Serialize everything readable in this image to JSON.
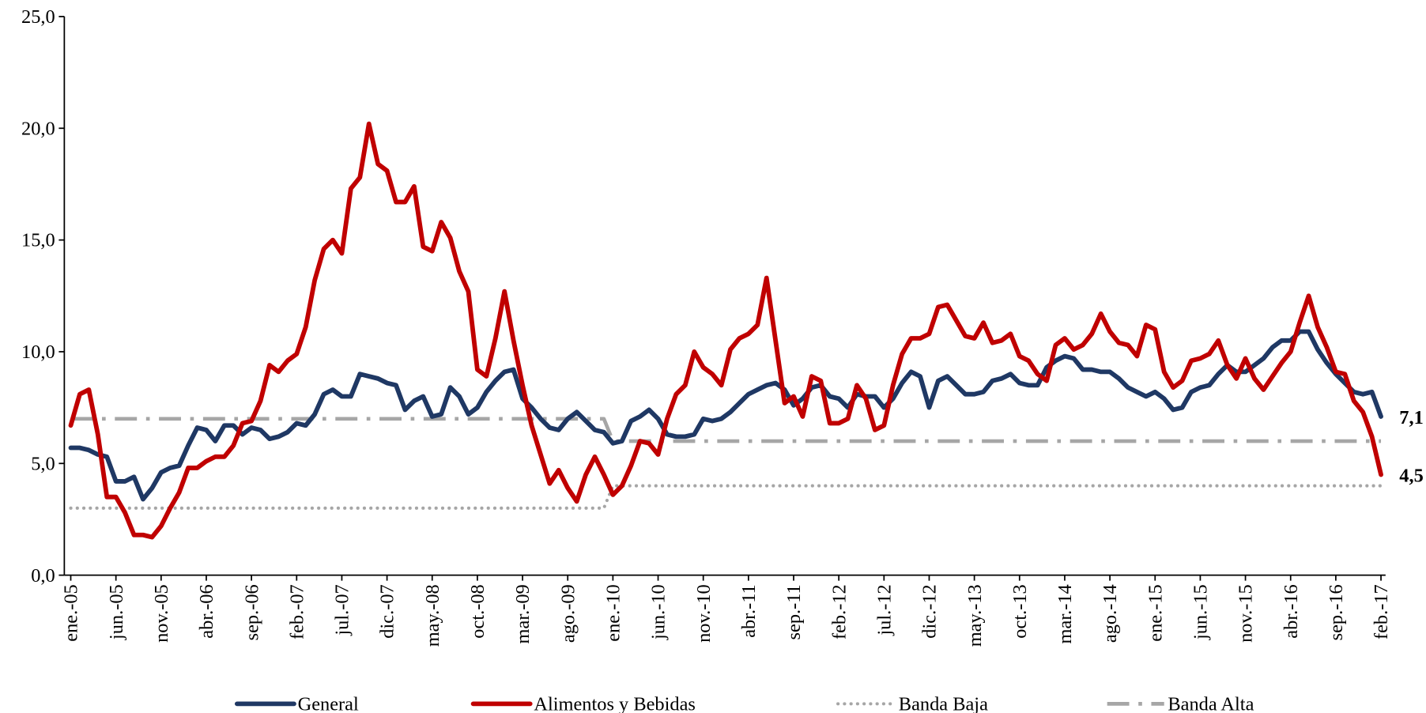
{
  "chart_data": {
    "type": "line",
    "categories": [
      "ene.-05",
      null,
      null,
      null,
      null,
      "jun.-05",
      null,
      null,
      null,
      null,
      "nov.-05",
      null,
      null,
      null,
      null,
      "abr.-06",
      null,
      null,
      null,
      null,
      "sep.-06",
      null,
      null,
      null,
      null,
      "feb.-07",
      null,
      null,
      null,
      null,
      "jul.-07",
      null,
      null,
      null,
      null,
      "dic.-07",
      null,
      null,
      null,
      null,
      "may.-08",
      null,
      null,
      null,
      null,
      "oct.-08",
      null,
      null,
      null,
      null,
      "mar.-09",
      null,
      null,
      null,
      null,
      "ago.-09",
      null,
      null,
      null,
      null,
      "ene.-10",
      null,
      null,
      null,
      null,
      "jun.-10",
      null,
      null,
      null,
      null,
      "nov.-10",
      null,
      null,
      null,
      null,
      "abr.-11",
      null,
      null,
      null,
      null,
      "sep.-11",
      null,
      null,
      null,
      null,
      "feb.-12",
      null,
      null,
      null,
      null,
      "jul.-12",
      null,
      null,
      null,
      null,
      "dic.-12",
      null,
      null,
      null,
      null,
      "may.-13",
      null,
      null,
      null,
      null,
      "oct.-13",
      null,
      null,
      null,
      null,
      "mar.-14",
      null,
      null,
      null,
      null,
      "ago.-14",
      null,
      null,
      null,
      null,
      "ene.-15",
      null,
      null,
      null,
      null,
      "jun.-15",
      null,
      null,
      null,
      null,
      "nov.-15",
      null,
      null,
      null,
      null,
      "abr.-16",
      null,
      null,
      null,
      null,
      "sep.-16",
      null,
      null,
      null,
      null,
      "feb.-17"
    ],
    "series": [
      {
        "name": "General",
        "color": "#1f3864",
        "width": 5,
        "dash": "solid",
        "values": [
          5.7,
          5.7,
          5.6,
          5.4,
          5.3,
          4.2,
          4.2,
          4.4,
          3.4,
          3.9,
          4.6,
          4.8,
          4.9,
          5.8,
          6.6,
          6.5,
          6.0,
          6.7,
          6.7,
          6.3,
          6.6,
          6.5,
          6.1,
          6.2,
          6.4,
          6.8,
          6.7,
          7.2,
          8.1,
          8.3,
          8.0,
          8.0,
          9.0,
          8.9,
          8.8,
          8.6,
          8.5,
          7.4,
          7.8,
          8.0,
          7.1,
          7.2,
          8.4,
          8.0,
          7.2,
          7.5,
          8.2,
          8.7,
          9.1,
          9.2,
          7.9,
          7.5,
          7.0,
          6.6,
          6.5,
          7.0,
          7.3,
          6.9,
          6.5,
          6.4,
          5.9,
          6.0,
          6.9,
          7.1,
          7.4,
          7.0,
          6.3,
          6.2,
          6.2,
          6.3,
          7.0,
          6.9,
          7.0,
          7.3,
          7.7,
          8.1,
          8.3,
          8.5,
          8.6,
          8.3,
          7.6,
          7.9,
          8.4,
          8.5,
          8.0,
          7.9,
          7.5,
          8.1,
          8.0,
          8.0,
          7.5,
          7.9,
          8.6,
          9.1,
          8.9,
          7.5,
          8.7,
          8.9,
          8.5,
          8.1,
          8.1,
          8.2,
          8.7,
          8.8,
          9.0,
          8.6,
          8.5,
          8.5,
          9.3,
          9.6,
          9.8,
          9.7,
          9.2,
          9.2,
          9.1,
          9.1,
          8.8,
          8.4,
          8.2,
          8.0,
          8.2,
          7.9,
          7.4,
          7.5,
          8.2,
          8.4,
          8.5,
          9.0,
          9.4,
          9.1,
          9.1,
          9.4,
          9.7,
          10.2,
          10.5,
          10.5,
          10.9,
          10.9,
          10.1,
          9.5,
          9.0,
          8.6,
          8.2,
          8.1,
          8.2,
          7.1
        ],
        "value_labels": [
          null,
          null,
          null,
          null,
          null,
          null,
          null,
          null,
          null,
          null,
          null,
          null,
          null,
          null,
          null,
          null,
          null,
          null,
          null,
          null,
          null,
          null,
          null,
          null,
          null,
          null,
          null,
          null,
          null,
          null,
          null,
          null,
          null,
          null,
          null,
          null,
          null,
          null,
          null,
          null,
          null,
          null,
          null,
          null,
          null,
          null,
          null,
          null,
          null,
          null,
          null,
          null,
          null,
          null,
          null,
          null,
          null,
          null,
          null,
          null,
          null,
          null,
          null,
          null,
          null,
          null,
          null,
          null,
          null,
          null,
          null,
          null,
          null,
          null,
          null,
          null,
          null,
          null,
          null,
          null,
          null,
          null,
          null,
          null,
          null,
          null,
          null,
          null,
          null,
          null,
          null,
          null,
          null,
          null,
          null,
          null,
          null,
          null,
          null,
          null,
          null,
          null,
          null,
          null,
          null,
          null,
          null,
          null,
          null,
          null,
          null,
          null,
          null,
          null,
          null,
          null,
          null,
          null,
          null,
          null,
          null,
          null,
          null,
          null,
          null,
          null,
          null,
          null,
          null,
          null,
          null,
          null,
          null,
          null,
          null,
          null,
          null,
          null,
          null,
          null,
          null,
          null,
          null,
          null,
          null,
          "7,1"
        ]
      },
      {
        "name": "Alimentos y Bebidas",
        "color": "#c00000",
        "width": 5,
        "dash": "solid",
        "values": [
          6.7,
          8.1,
          8.3,
          6.3,
          3.5,
          3.5,
          2.8,
          1.8,
          1.8,
          1.7,
          2.2,
          3.0,
          3.7,
          4.8,
          4.8,
          5.1,
          5.3,
          5.3,
          5.8,
          6.8,
          6.9,
          7.8,
          9.4,
          9.1,
          9.6,
          9.9,
          11.1,
          13.2,
          14.6,
          15.0,
          14.4,
          17.3,
          17.8,
          20.2,
          18.4,
          18.1,
          16.7,
          16.7,
          17.4,
          14.7,
          14.5,
          15.8,
          15.1,
          13.6,
          12.7,
          9.2,
          8.9,
          10.6,
          12.7,
          10.5,
          8.5,
          6.7,
          5.4,
          4.1,
          4.7,
          3.9,
          3.3,
          4.5,
          5.3,
          4.5,
          3.6,
          4.0,
          4.9,
          6.0,
          5.9,
          5.4,
          7.0,
          8.1,
          8.5,
          10.0,
          9.3,
          9.0,
          8.5,
          10.1,
          10.6,
          10.8,
          11.2,
          13.3,
          10.5,
          7.7,
          8.0,
          7.1,
          8.9,
          8.7,
          6.8,
          6.8,
          7.0,
          8.5,
          7.9,
          6.5,
          6.7,
          8.5,
          9.9,
          10.6,
          10.6,
          10.8,
          12.0,
          12.1,
          11.4,
          10.7,
          10.6,
          11.3,
          10.4,
          10.5,
          10.8,
          9.8,
          9.6,
          9.0,
          8.7,
          10.3,
          10.6,
          10.1,
          10.3,
          10.8,
          11.7,
          10.9,
          10.4,
          10.3,
          9.8,
          11.2,
          11.0,
          9.1,
          8.4,
          8.7,
          9.6,
          9.7,
          9.9,
          10.5,
          9.4,
          8.8,
          9.7,
          8.8,
          8.3,
          8.9,
          9.5,
          10.0,
          11.3,
          12.5,
          11.1,
          10.2,
          9.1,
          9.0,
          7.8,
          7.3,
          6.2,
          4.5
        ],
        "value_labels": [
          null,
          null,
          null,
          null,
          null,
          null,
          null,
          null,
          null,
          null,
          null,
          null,
          null,
          null,
          null,
          null,
          null,
          null,
          null,
          null,
          null,
          null,
          null,
          null,
          null,
          null,
          null,
          null,
          null,
          null,
          null,
          null,
          null,
          null,
          null,
          null,
          null,
          null,
          null,
          null,
          null,
          null,
          null,
          null,
          null,
          null,
          null,
          null,
          null,
          null,
          null,
          null,
          null,
          null,
          null,
          null,
          null,
          null,
          null,
          null,
          null,
          null,
          null,
          null,
          null,
          null,
          null,
          null,
          null,
          null,
          null,
          null,
          null,
          null,
          null,
          null,
          null,
          null,
          null,
          null,
          null,
          null,
          null,
          null,
          null,
          null,
          null,
          null,
          null,
          null,
          null,
          null,
          null,
          null,
          null,
          null,
          null,
          null,
          null,
          null,
          null,
          null,
          null,
          null,
          null,
          null,
          null,
          null,
          null,
          null,
          null,
          null,
          null,
          null,
          null,
          null,
          null,
          null,
          null,
          null,
          null,
          null,
          null,
          null,
          null,
          null,
          null,
          null,
          null,
          null,
          null,
          null,
          null,
          null,
          null,
          null,
          null,
          null,
          null,
          null,
          null,
          null,
          null,
          null,
          null,
          "4,5"
        ]
      },
      {
        "name": "Banda Baja",
        "color": "#a6a6a6",
        "width": 3.5,
        "dash": "dotted",
        "values": [
          3,
          3,
          3,
          3,
          3,
          3,
          3,
          3,
          3,
          3,
          3,
          3,
          3,
          3,
          3,
          3,
          3,
          3,
          3,
          3,
          3,
          3,
          3,
          3,
          3,
          3,
          3,
          3,
          3,
          3,
          3,
          3,
          3,
          3,
          3,
          3,
          3,
          3,
          3,
          3,
          3,
          3,
          3,
          3,
          3,
          3,
          3,
          3,
          3,
          3,
          3,
          3,
          3,
          3,
          3,
          3,
          3,
          3,
          3,
          3,
          4,
          4,
          4,
          4,
          4,
          4,
          4,
          4,
          4,
          4,
          4,
          4,
          4,
          4,
          4,
          4,
          4,
          4,
          4,
          4,
          4,
          4,
          4,
          4,
          4,
          4,
          4,
          4,
          4,
          4,
          4,
          4,
          4,
          4,
          4,
          4,
          4,
          4,
          4,
          4,
          4,
          4,
          4,
          4,
          4,
          4,
          4,
          4,
          4,
          4,
          4,
          4,
          4,
          4,
          4,
          4,
          4,
          4,
          4,
          4,
          4,
          4,
          4,
          4,
          4,
          4,
          4,
          4,
          4,
          4,
          4,
          4,
          4,
          4,
          4,
          4,
          4,
          4,
          4,
          4,
          4,
          4,
          4,
          4,
          4,
          4
        ]
      },
      {
        "name": "Banda Alta",
        "color": "#a6a6a6",
        "width": 4,
        "dash": "dashdot",
        "values": [
          7,
          7,
          7,
          7,
          7,
          7,
          7,
          7,
          7,
          7,
          7,
          7,
          7,
          7,
          7,
          7,
          7,
          7,
          7,
          7,
          7,
          7,
          7,
          7,
          7,
          7,
          7,
          7,
          7,
          7,
          7,
          7,
          7,
          7,
          7,
          7,
          7,
          7,
          7,
          7,
          7,
          7,
          7,
          7,
          7,
          7,
          7,
          7,
          7,
          7,
          7,
          7,
          7,
          7,
          7,
          7,
          7,
          7,
          7,
          7,
          6,
          6,
          6,
          6,
          6,
          6,
          6,
          6,
          6,
          6,
          6,
          6,
          6,
          6,
          6,
          6,
          6,
          6,
          6,
          6,
          6,
          6,
          6,
          6,
          6,
          6,
          6,
          6,
          6,
          6,
          6,
          6,
          6,
          6,
          6,
          6,
          6,
          6,
          6,
          6,
          6,
          6,
          6,
          6,
          6,
          6,
          6,
          6,
          6,
          6,
          6,
          6,
          6,
          6,
          6,
          6,
          6,
          6,
          6,
          6,
          6,
          6,
          6,
          6,
          6,
          6,
          6,
          6,
          6,
          6,
          6,
          6,
          6,
          6,
          6,
          6,
          6,
          6,
          6,
          6,
          6,
          6,
          6,
          6,
          6,
          6
        ]
      }
    ],
    "ylim": [
      0,
      25
    ],
    "yticks": [
      {
        "value": 0,
        "label": "0,0"
      },
      {
        "value": 5,
        "label": "5,0"
      },
      {
        "value": 10,
        "label": "10,0"
      },
      {
        "value": 15,
        "label": "15,0"
      },
      {
        "value": 20,
        "label": "20,0"
      },
      {
        "value": 25,
        "label": "25,0"
      }
    ],
    "grid": false,
    "legend": "bottom"
  }
}
